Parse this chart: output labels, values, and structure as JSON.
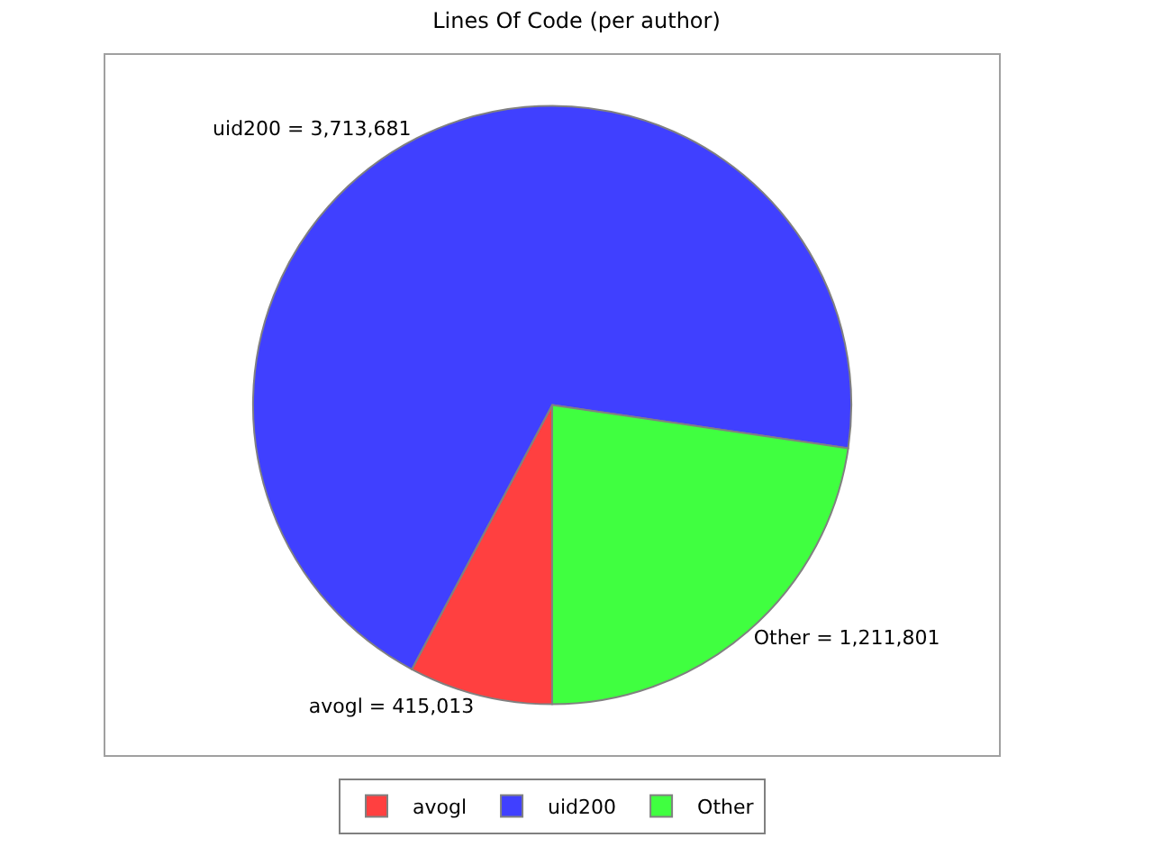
{
  "chart_data": {
    "type": "pie",
    "title": "Lines Of Code (per author)",
    "categories": [
      "avogl",
      "uid200",
      "Other"
    ],
    "values": [
      415013,
      3713681,
      1211801
    ],
    "colors": [
      "#ff4040",
      "#4040ff",
      "#40ff40"
    ],
    "value_labels": [
      "avogl = 415,013",
      "uid200 = 3,713,681",
      "Other = 1,211,801"
    ],
    "legend": "bottom"
  }
}
